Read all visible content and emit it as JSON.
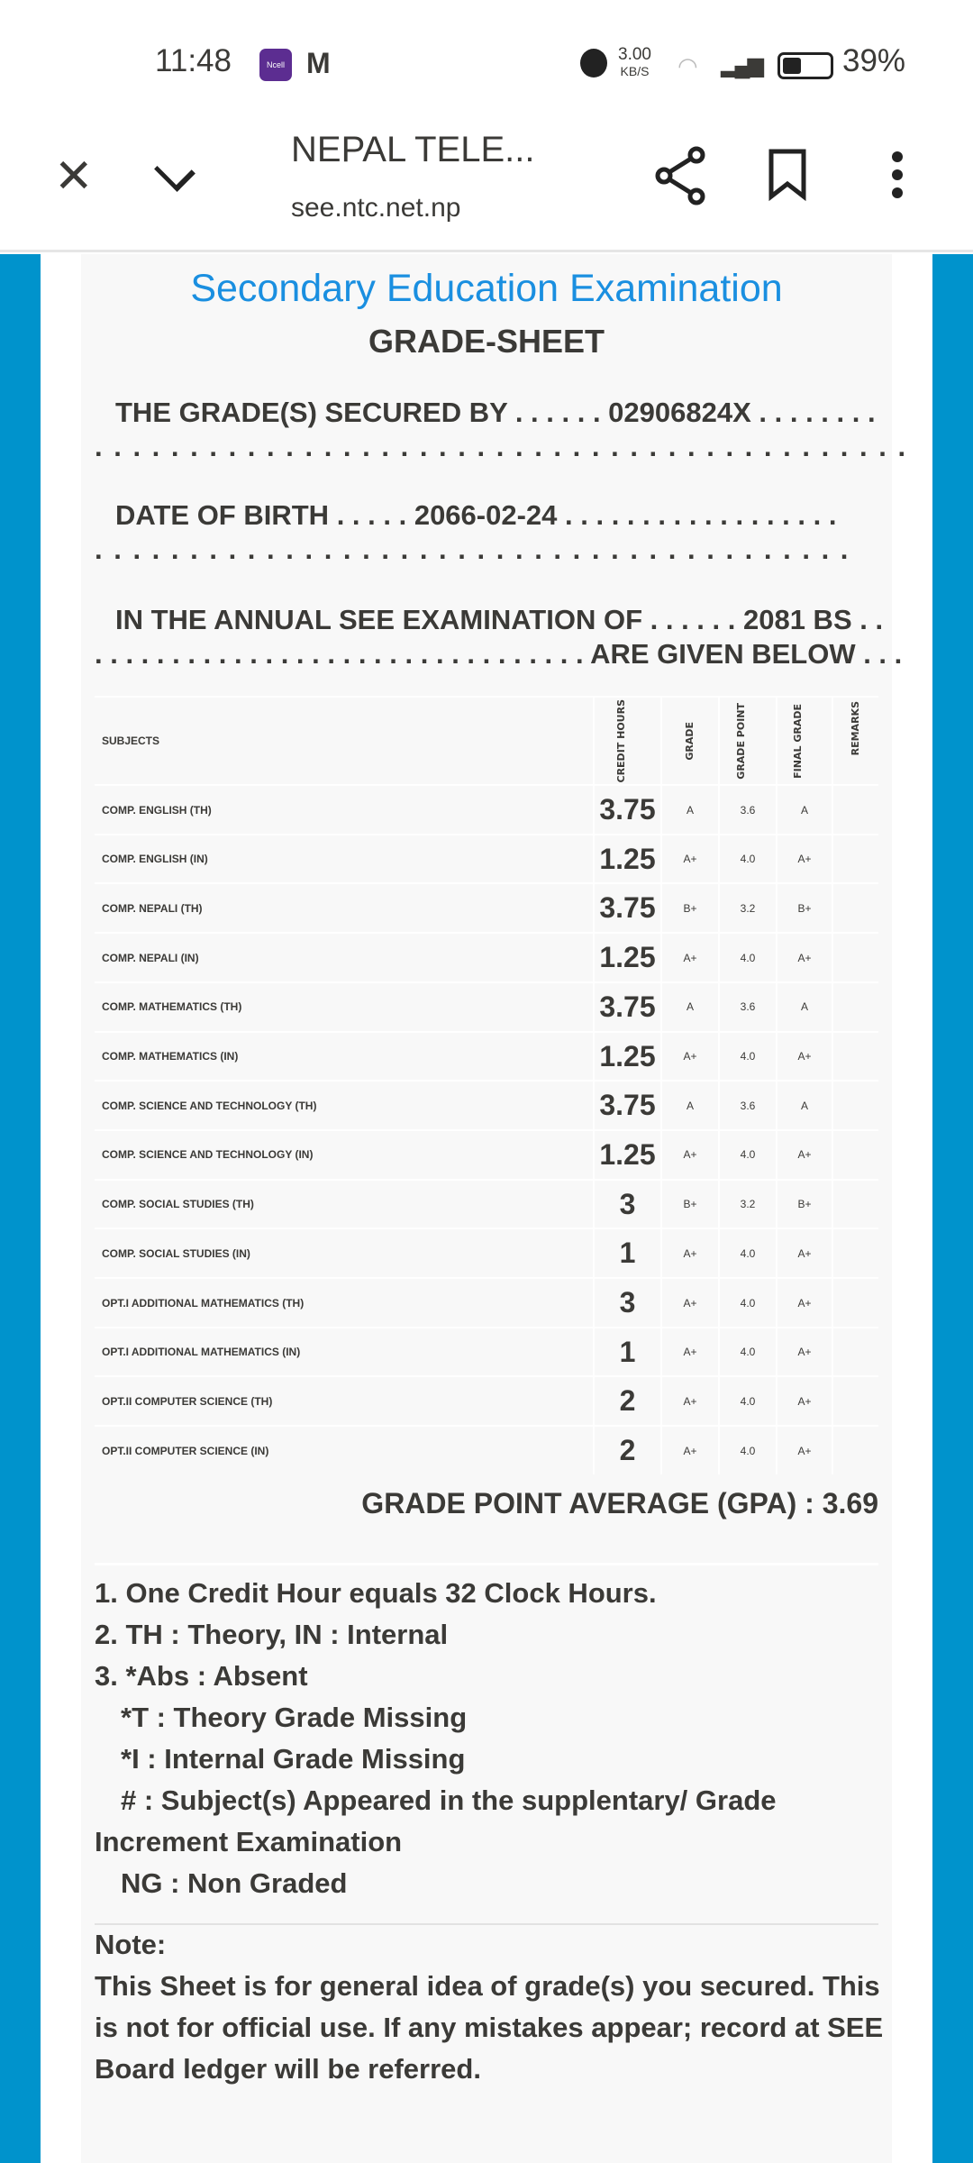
{
  "status_bar": {
    "time": "11:48",
    "ncell_label": "Ncell",
    "gmail_icon": "gmail-icon",
    "speed": "3.00",
    "speed_unit": "KB/S",
    "battery": "39%"
  },
  "browser": {
    "title": "NEPAL TELE...",
    "url": "see.ntc.net.np"
  },
  "colors": {
    "accent": "#1a8fe0",
    "side": "#0093cc",
    "ncell": "#5c2d91"
  },
  "sheet": {
    "heading": "Secondary Education Examination",
    "subheading": "GRADE-SHEET",
    "secured_label": "THE GRADE(S) SECURED BY",
    "symbol_no": "02906824X",
    "dob_label": "DATE OF BIRTH",
    "dob": "2066-02-24",
    "exam_label": "IN THE ANNUAL SEE EXAMINATION OF",
    "exam_year": "2081 BS",
    "given_below": "ARE GIVEN BELOW",
    "columns": {
      "subjects": "SUBJECTS",
      "credit_hours": "CREDIT HOURS",
      "grade": "GRADE",
      "grade_point": "GRADE POINT",
      "final_grade": "FINAL GRADE",
      "remarks": "REMARKS"
    },
    "rows": [
      {
        "subject": "COMP. ENGLISH (TH)",
        "credit": "3.75",
        "grade": "A",
        "gp": "3.6",
        "final": "A"
      },
      {
        "subject": "COMP. ENGLISH (IN)",
        "credit": "1.25",
        "grade": "A+",
        "gp": "4.0",
        "final": "A+"
      },
      {
        "subject": "COMP. NEPALI (TH)",
        "credit": "3.75",
        "grade": "B+",
        "gp": "3.2",
        "final": "B+"
      },
      {
        "subject": "COMP. NEPALI (IN)",
        "credit": "1.25",
        "grade": "A+",
        "gp": "4.0",
        "final": "A+"
      },
      {
        "subject": "COMP. MATHEMATICS (TH)",
        "credit": "3.75",
        "grade": "A",
        "gp": "3.6",
        "final": "A"
      },
      {
        "subject": "COMP. MATHEMATICS (IN)",
        "credit": "1.25",
        "grade": "A+",
        "gp": "4.0",
        "final": "A+"
      },
      {
        "subject": "COMP. SCIENCE AND TECHNOLOGY (TH)",
        "credit": "3.75",
        "grade": "A",
        "gp": "3.6",
        "final": "A"
      },
      {
        "subject": "COMP. SCIENCE AND TECHNOLOGY (IN)",
        "credit": "1.25",
        "grade": "A+",
        "gp": "4.0",
        "final": "A+"
      },
      {
        "subject": "COMP. SOCIAL STUDIES (TH)",
        "credit": "3",
        "grade": "B+",
        "gp": "3.2",
        "final": "B+"
      },
      {
        "subject": "COMP. SOCIAL STUDIES (IN)",
        "credit": "1",
        "grade": "A+",
        "gp": "4.0",
        "final": "A+"
      },
      {
        "subject": "OPT.I ADDITIONAL MATHEMATICS (TH)",
        "credit": "3",
        "grade": "A+",
        "gp": "4.0",
        "final": "A+"
      },
      {
        "subject": "OPT.I ADDITIONAL MATHEMATICS (IN)",
        "credit": "1",
        "grade": "A+",
        "gp": "4.0",
        "final": "A+"
      },
      {
        "subject": "OPT.II COMPUTER SCIENCE (TH)",
        "credit": "2",
        "grade": "A+",
        "gp": "4.0",
        "final": "A+"
      },
      {
        "subject": "OPT.II COMPUTER SCIENCE (IN)",
        "credit": "2",
        "grade": "A+",
        "gp": "4.0",
        "final": "A+"
      }
    ],
    "gpa": "GRADE POINT AVERAGE (GPA) : 3.69",
    "notes": [
      "1. One Credit Hour equals 32 Clock Hours.",
      "2. TH : Theory, IN : Internal",
      "3. *Abs : Absent",
      "*T : Theory Grade Missing",
      "*I : Internal Grade Missing",
      "# : Subject(s) Appeared in the supplentary/ Grade",
      "Increment Examination",
      "NG : Non Graded"
    ],
    "note_title": "Note:",
    "note_lines": [
      "This Sheet is for general idea of grade(s) you secured. This",
      "is not for official use. If any mistakes appear; record at SEE",
      "Board ledger will be referred."
    ]
  }
}
